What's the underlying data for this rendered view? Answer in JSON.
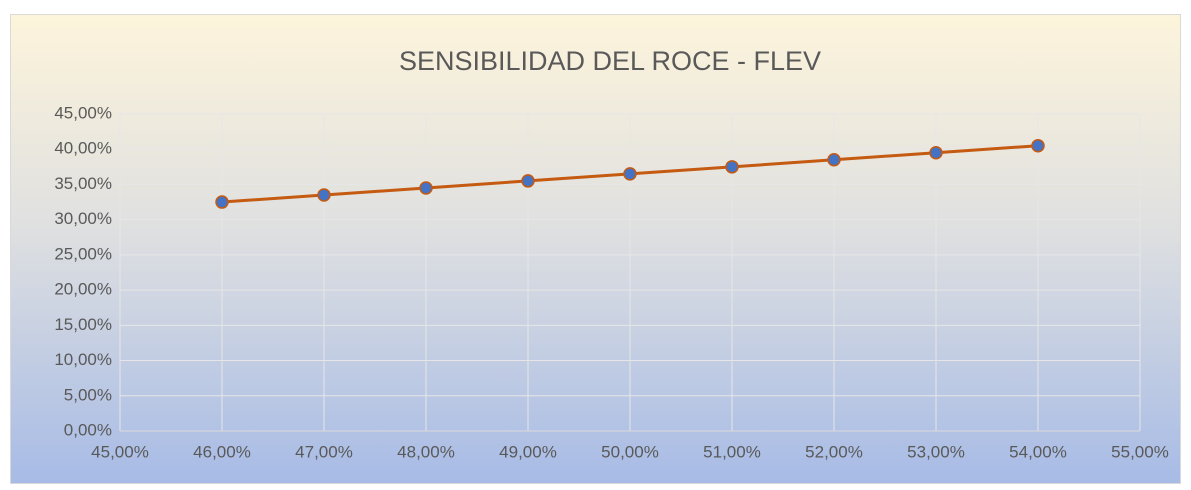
{
  "chart_data": {
    "type": "scatter-line",
    "title": "SENSIBILIDAD DEL ROCE - FLEV",
    "x": [
      46,
      47,
      48,
      49,
      50,
      51,
      52,
      53,
      54
    ],
    "values": [
      32.5,
      33.5,
      34.5,
      35.5,
      36.5,
      37.5,
      38.5,
      39.5,
      40.5
    ],
    "color": "#c55a11",
    "marker_color": "#4472c4",
    "xlim": [
      45,
      55
    ],
    "ylim": [
      0,
      45
    ],
    "xticks": [
      {
        "value": 45,
        "label": "45,00%"
      },
      {
        "value": 46,
        "label": "46,00%"
      },
      {
        "value": 47,
        "label": "47,00%"
      },
      {
        "value": 48,
        "label": "48,00%"
      },
      {
        "value": 49,
        "label": "49,00%"
      },
      {
        "value": 50,
        "label": "50,00%"
      },
      {
        "value": 51,
        "label": "51,00%"
      },
      {
        "value": 52,
        "label": "52,00%"
      },
      {
        "value": 53,
        "label": "53,00%"
      },
      {
        "value": 54,
        "label": "54,00%"
      },
      {
        "value": 55,
        "label": "55,00%"
      }
    ],
    "yticks": [
      {
        "value": 0,
        "label": "0,00%"
      },
      {
        "value": 5,
        "label": "5,00%"
      },
      {
        "value": 10,
        "label": "10,00%"
      },
      {
        "value": 15,
        "label": "15,00%"
      },
      {
        "value": 20,
        "label": "20,00%"
      },
      {
        "value": 25,
        "label": "25,00%"
      },
      {
        "value": 30,
        "label": "30,00%"
      },
      {
        "value": 35,
        "label": "35,00%"
      },
      {
        "value": 40,
        "label": "40,00%"
      },
      {
        "value": 45,
        "label": "45,00%"
      }
    ],
    "grid": true
  }
}
